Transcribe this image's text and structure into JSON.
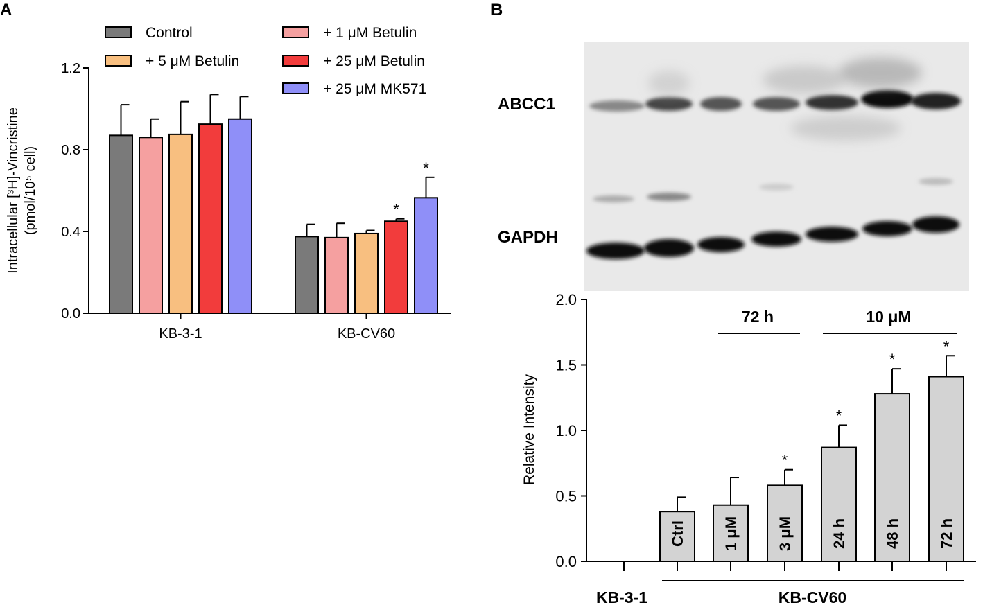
{
  "panels": {
    "a_label": "A",
    "b_label": "B"
  },
  "chart_data": [
    {
      "type": "bar",
      "panel": "A",
      "title": "",
      "ylabel_line1": "Intracellular [³H]-Vincristine",
      "ylabel_line2": "(pmol/10⁵ cell)",
      "ylim": [
        0,
        1.2
      ],
      "yticks": [
        "0.0",
        "0.4",
        "0.8",
        "1.2"
      ],
      "categories": [
        "KB-3-1",
        "KB-CV60"
      ],
      "legend_position": "top",
      "series": [
        {
          "name": "Control",
          "color": "#7a7a7a",
          "values": [
            0.87,
            0.375
          ],
          "errors": [
            0.15,
            0.06
          ],
          "sig": [
            "",
            ""
          ]
        },
        {
          "name": "+ 1 μM Betulin",
          "color": "#f5a0a0",
          "values": [
            0.86,
            0.37
          ],
          "errors": [
            0.09,
            0.07
          ],
          "sig": [
            "",
            ""
          ]
        },
        {
          "name": "+ 5 μM Betulin",
          "color": "#f8bf80",
          "values": [
            0.875,
            0.39
          ],
          "errors": [
            0.16,
            0.015
          ],
          "sig": [
            "",
            ""
          ]
        },
        {
          "name": "+ 25 μM Betulin",
          "color": "#f23c3c",
          "values": [
            0.925,
            0.45
          ],
          "errors": [
            0.145,
            0.012
          ],
          "sig": [
            "",
            "*"
          ]
        },
        {
          "name": "+ 25 μM MK571",
          "color": "#8f8ff8",
          "values": [
            0.95,
            0.565
          ],
          "errors": [
            0.11,
            0.1
          ],
          "sig": [
            "",
            "*"
          ]
        }
      ]
    },
    {
      "type": "bar",
      "panel": "B",
      "title": "",
      "ylabel": "Relative Intensity",
      "ylim": [
        0,
        2.0
      ],
      "yticks": [
        "0.0",
        "0.5",
        "1.0",
        "1.5",
        "2.0"
      ],
      "bar_color": "#d3d3d3",
      "categories": [
        "KB-3-1",
        "Ctrl",
        "1 μM",
        "3 μM",
        "24 h",
        "48 h",
        "72 h"
      ],
      "values": [
        0,
        0.38,
        0.43,
        0.58,
        0.87,
        1.28,
        1.41
      ],
      "errors": [
        0,
        0.11,
        0.21,
        0.12,
        0.17,
        0.19,
        0.16
      ],
      "sig": [
        "",
        "",
        "",
        "*",
        "*",
        "*",
        "*"
      ],
      "group_labels": {
        "time_bracket": "72 h",
        "dose_bracket": "10 μM",
        "cell_left": "KB-3-1",
        "cell_right": "KB-CV60"
      },
      "blot": {
        "band1_label": "ABCC1",
        "band2_label": "GAPDH"
      }
    }
  ]
}
